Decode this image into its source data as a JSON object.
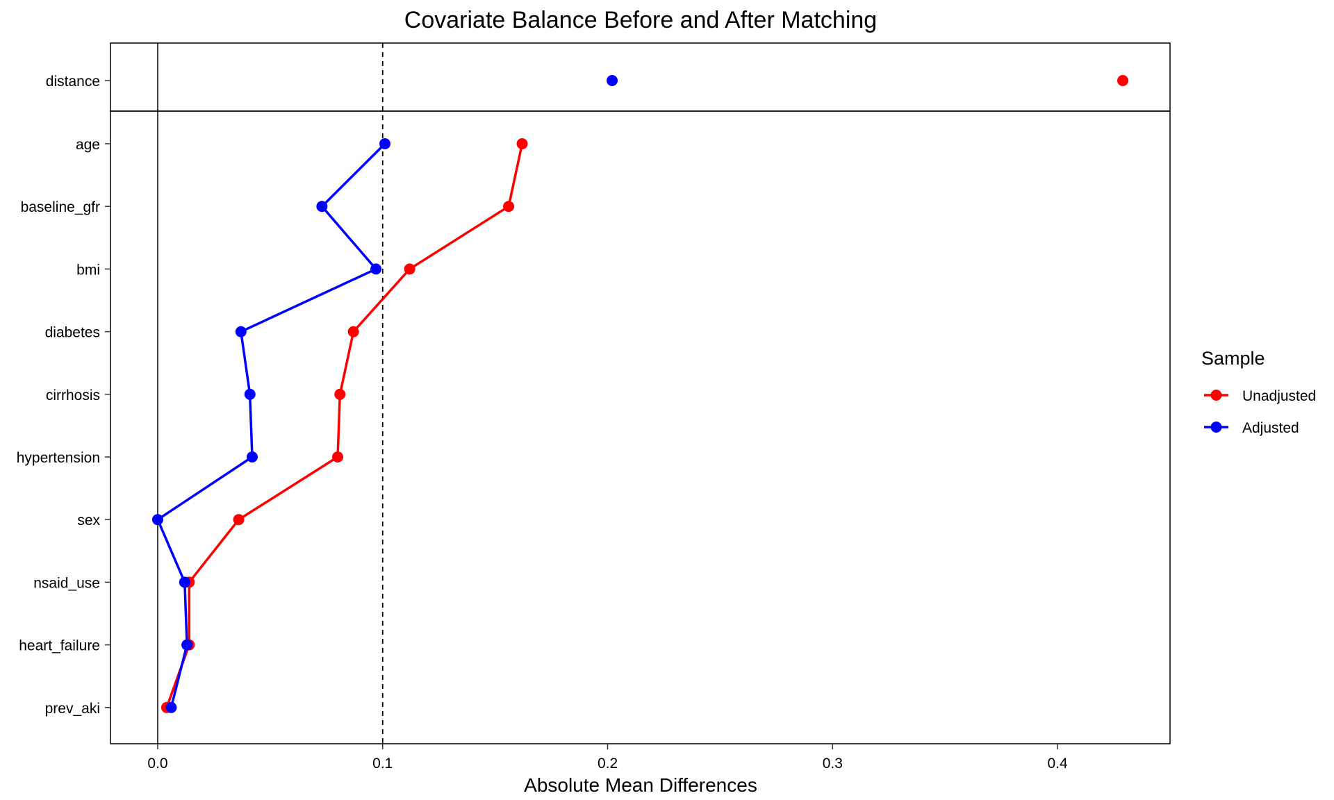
{
  "chart_data": {
    "type": "line",
    "title": "Covariate Balance Before and After Matching",
    "xlabel": "Absolute Mean Differences",
    "ylabel": "",
    "xlim": [
      -0.021,
      0.45
    ],
    "x_ticks": [
      0.0,
      0.1,
      0.2,
      0.3,
      0.4
    ],
    "x_tick_labels": [
      "0.0",
      "0.1",
      "0.2",
      "0.3",
      "0.4"
    ],
    "threshold": 0.1,
    "grid": false,
    "legend_placement": "right",
    "legend_title": "Sample",
    "top_panel": {
      "categories": [
        "distance"
      ],
      "series": [
        {
          "name": "Unadjusted",
          "color": "#ff0000",
          "values": [
            0.429
          ]
        },
        {
          "name": "Adjusted",
          "color": "#0000ff",
          "values": [
            0.202
          ]
        }
      ]
    },
    "main_panel": {
      "categories": [
        "age",
        "baseline_gfr",
        "bmi",
        "diabetes",
        "cirrhosis",
        "hypertension",
        "sex",
        "nsaid_use",
        "heart_failure",
        "prev_aki"
      ],
      "series": [
        {
          "name": "Unadjusted",
          "color": "#ff0000",
          "values": [
            0.162,
            0.156,
            0.112,
            0.087,
            0.081,
            0.08,
            0.036,
            0.014,
            0.014,
            0.004
          ]
        },
        {
          "name": "Adjusted",
          "color": "#0000ff",
          "values": [
            0.101,
            0.073,
            0.097,
            0.037,
            0.041,
            0.042,
            0.0,
            0.012,
            0.013,
            0.006
          ]
        }
      ]
    }
  }
}
